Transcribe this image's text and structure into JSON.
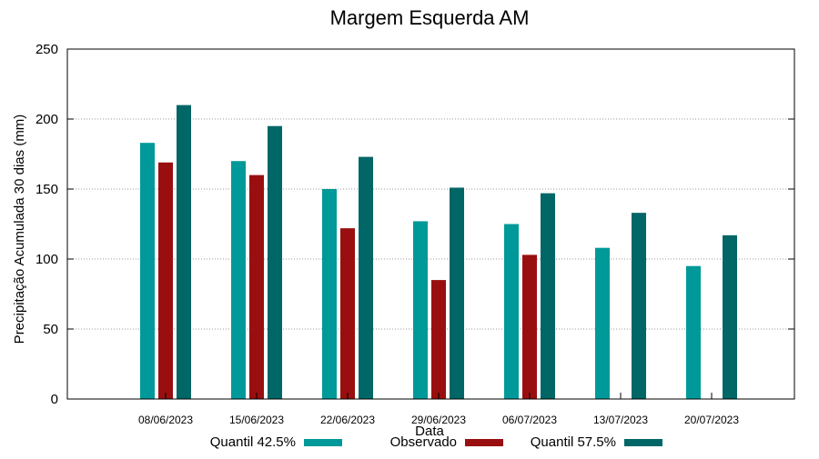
{
  "chart_data": {
    "type": "bar",
    "title": "Margem Esquerda AM",
    "xlabel": "Data",
    "ylabel": "Precipitação Acumulada 30 dias (mm)",
    "ylim": [
      0,
      250
    ],
    "yticks": [
      "0",
      "50",
      "100",
      "150",
      "200",
      "250"
    ],
    "grid": true,
    "legend_position": "bottom",
    "categories": [
      "08/06/2023",
      "15/06/2023",
      "22/06/2023",
      "29/06/2023",
      "06/07/2023",
      "13/07/2023",
      "20/07/2023"
    ],
    "series": [
      {
        "name": "Quantil 42.5%",
        "color": "#009999",
        "values": [
          183,
          170,
          150,
          127,
          125,
          108,
          95
        ]
      },
      {
        "name": "Observado",
        "color": "#990f0f",
        "values": [
          169,
          160,
          122,
          85,
          103,
          null,
          null
        ]
      },
      {
        "name": "Quantil 57.5%",
        "color": "#006666",
        "values": [
          210,
          195,
          173,
          151,
          147,
          133,
          117
        ]
      }
    ]
  }
}
